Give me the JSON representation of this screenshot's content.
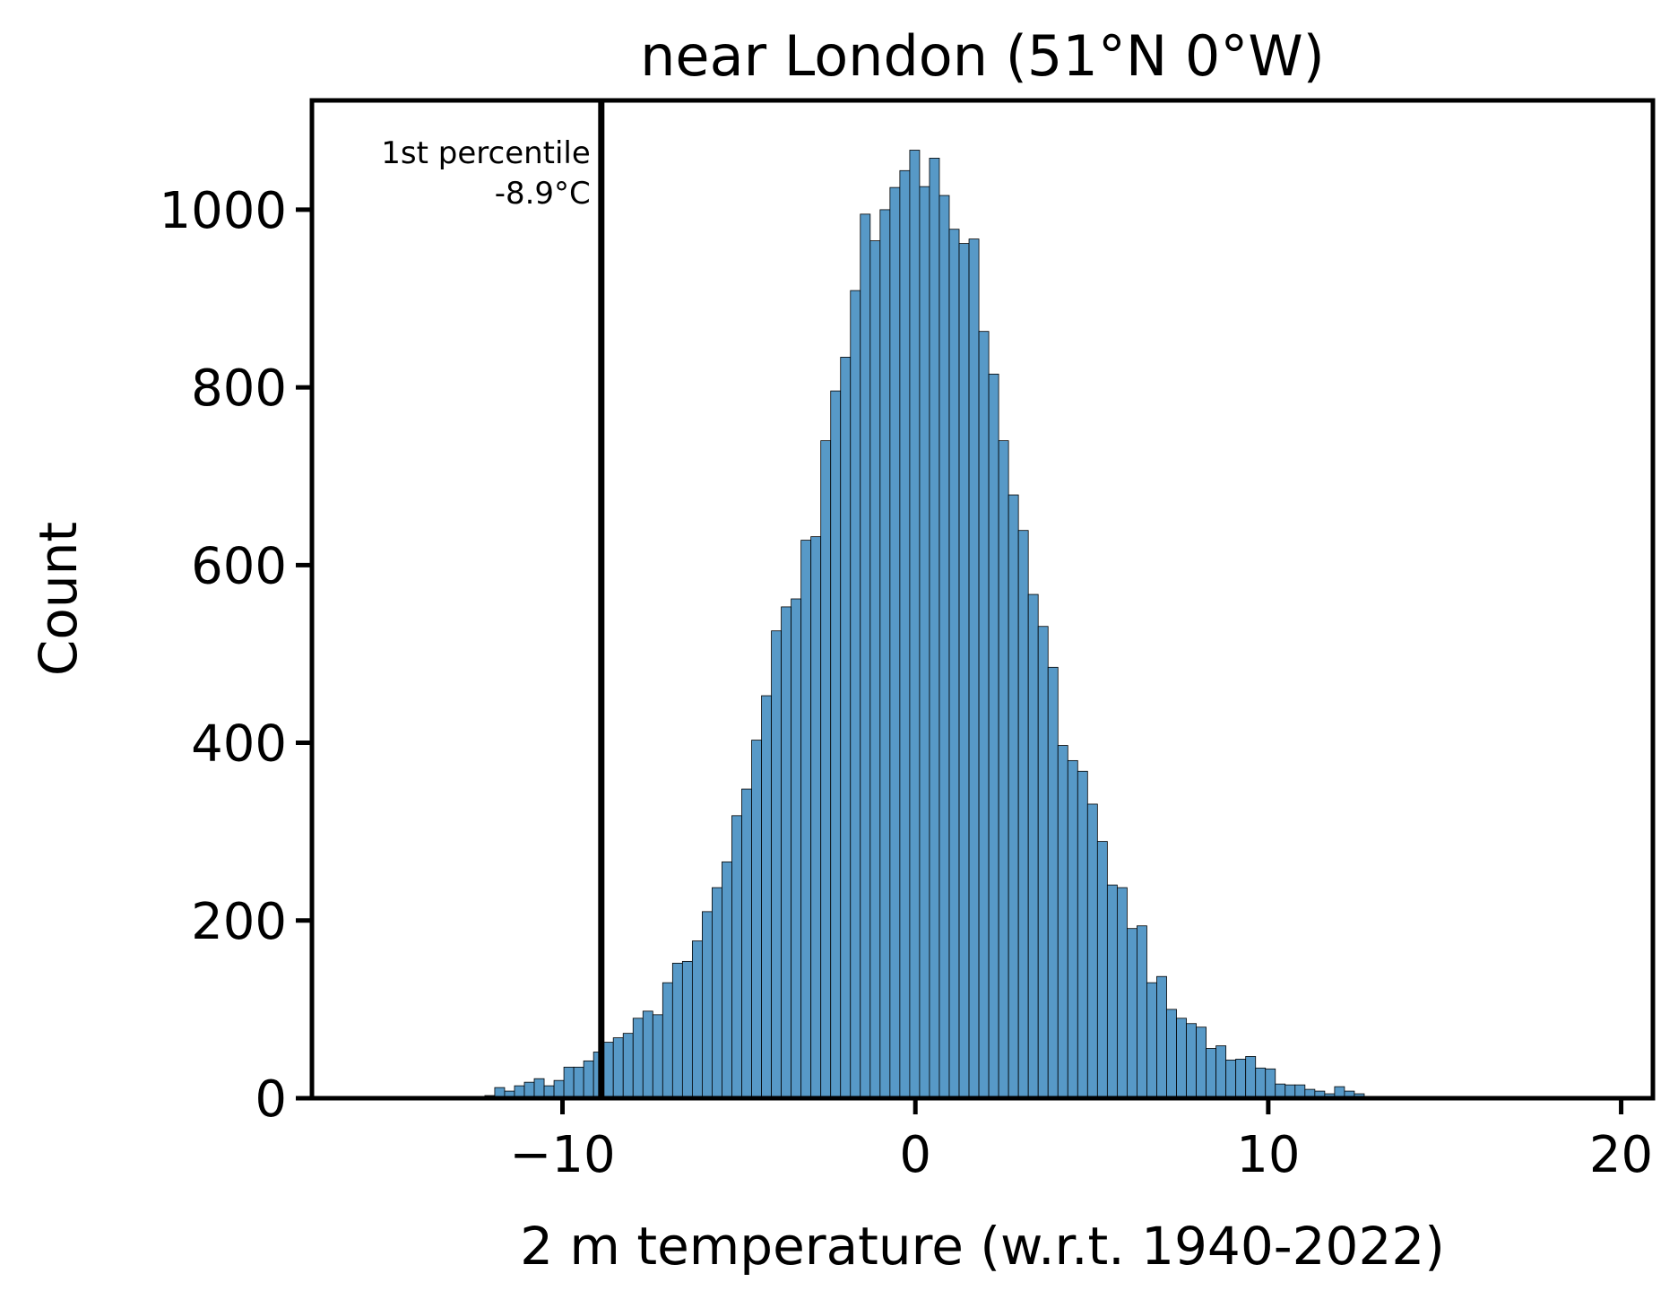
{
  "chart_data": {
    "type": "histogram",
    "title": "near London (51°N 0°W)",
    "x_label": "2 m temperature (w.r.t. 1940-2022)",
    "y_label": "Count",
    "color": "#5799c7",
    "edge_color": "#000000",
    "bins": [
      -12.2,
      -11.92,
      -11.64,
      -11.36,
      -11.08,
      -10.8,
      -10.52,
      -10.24,
      -9.96,
      -9.68,
      -9.4,
      -9.12,
      -8.84,
      -8.56,
      -8.28,
      -8.0,
      -7.72,
      -7.44,
      -7.16,
      -6.88,
      -6.6,
      -6.32,
      -6.04,
      -5.76,
      -5.48,
      -5.2,
      -4.92,
      -4.64,
      -4.36,
      -4.08,
      -3.8,
      -3.52,
      -3.24,
      -2.96,
      -2.68,
      -2.4,
      -2.12,
      -1.84,
      -1.56,
      -1.28,
      -1.0,
      -0.72,
      -0.44,
      -0.16,
      0.12,
      0.4,
      0.68,
      0.96,
      1.24,
      1.52,
      1.8,
      2.08,
      2.36,
      2.64,
      2.92,
      3.2,
      3.48,
      3.76,
      4.04,
      4.32,
      4.6,
      4.88,
      5.16,
      5.44,
      5.72,
      6.0,
      6.28,
      6.56,
      6.84,
      7.12,
      7.4,
      7.68,
      7.96,
      8.24,
      8.52,
      8.8,
      9.08,
      9.36,
      9.64,
      9.92,
      10.2,
      10.48,
      10.76,
      11.04,
      11.32,
      11.6,
      11.88,
      12.16,
      12.44,
      12.72,
      13.0,
      13.28,
      13.56,
      13.84
    ],
    "values": [
      3,
      12,
      8,
      14,
      18,
      22,
      14,
      20,
      35,
      35,
      42,
      52,
      63,
      68,
      73,
      90,
      98,
      94,
      130,
      152,
      154,
      177,
      210,
      237,
      266,
      318,
      348,
      403,
      453,
      526,
      553,
      562,
      628,
      632,
      740,
      796,
      834,
      909,
      995,
      965,
      1000,
      1025,
      1044,
      1067,
      1026,
      1058,
      1016,
      978,
      962,
      967,
      863,
      815,
      740,
      679,
      639,
      567,
      531,
      485,
      397,
      380,
      368,
      331,
      289,
      240,
      237,
      191,
      194,
      130,
      137,
      100,
      90,
      84,
      80,
      56,
      59,
      43,
      44,
      47,
      34,
      33,
      16,
      15,
      15,
      10,
      8,
      5,
      13,
      8,
      5,
      2,
      0,
      0,
      2
    ],
    "xlim": [
      -17.1,
      20.9
    ],
    "ylim": [
      0,
      1123
    ],
    "xticks": [
      {
        "value": -10,
        "label": "−10"
      },
      0,
      10,
      20
    ],
    "yticks": [
      0,
      200,
      400,
      600,
      800,
      1000
    ],
    "percentile_line": {
      "value": -8.9,
      "name": "1st percentile",
      "value_label": "-8.9°C"
    }
  }
}
